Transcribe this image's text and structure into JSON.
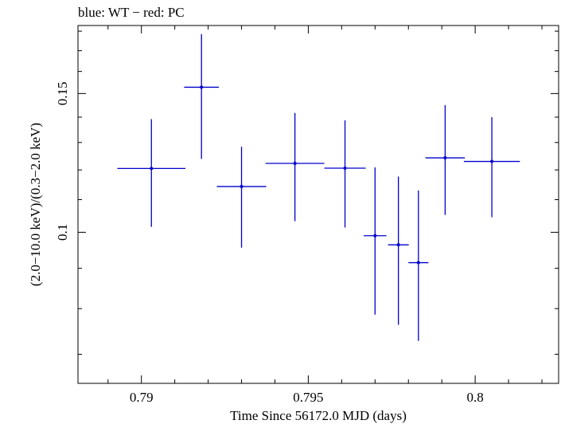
{
  "chart_data": {
    "type": "scatter",
    "title": "blue: WT − red: PC",
    "xlabel": "Time Since 56172.0 MJD (days)",
    "ylabel": "(2.0−10.0 keV)/(0.3−2.0 keV)",
    "xlim": [
      0.7881,
      0.8025
    ],
    "ylim": [
      0.0643,
      0.183
    ],
    "y_scale": "log",
    "x_ticks": [
      {
        "value": 0.79,
        "label": "0.79"
      },
      {
        "value": 0.795,
        "label": "0.795"
      },
      {
        "value": 0.8,
        "label": "0.8"
      }
    ],
    "y_ticks": [
      {
        "value": 0.1,
        "label": "0.1"
      },
      {
        "value": 0.15,
        "label": "0.15"
      }
    ],
    "grid": false,
    "series": [
      {
        "color": "#0000cc",
        "points": [
          {
            "x": 0.7903,
            "xerr": 0.00102,
            "y": 0.1205,
            "ylo": 0.1016,
            "yhi": 0.1392
          },
          {
            "x": 0.7918,
            "xerr": 0.00052,
            "y": 0.1528,
            "ylo": 0.1239,
            "yhi": 0.1785
          },
          {
            "x": 0.793,
            "xerr": 0.00074,
            "y": 0.1143,
            "ylo": 0.0956,
            "yhi": 0.1284
          },
          {
            "x": 0.7946,
            "xerr": 0.00088,
            "y": 0.1223,
            "ylo": 0.1033,
            "yhi": 0.1417
          },
          {
            "x": 0.7961,
            "xerr": 0.00062,
            "y": 0.1206,
            "ylo": 0.1014,
            "yhi": 0.1387
          },
          {
            "x": 0.797,
            "xerr": 0.00034,
            "y": 0.099,
            "ylo": 0.0786,
            "yhi": 0.1209
          },
          {
            "x": 0.7977,
            "xerr": 0.00031,
            "y": 0.0964,
            "ylo": 0.0763,
            "yhi": 0.1177
          },
          {
            "x": 0.7983,
            "xerr": 0.0003,
            "y": 0.0915,
            "ylo": 0.0728,
            "yhi": 0.113
          },
          {
            "x": 0.7991,
            "xerr": 0.00059,
            "y": 0.1243,
            "ylo": 0.1052,
            "yhi": 0.145
          },
          {
            "x": 0.8005,
            "xerr": 0.00084,
            "y": 0.123,
            "ylo": 0.1045,
            "yhi": 0.14
          }
        ]
      }
    ]
  }
}
